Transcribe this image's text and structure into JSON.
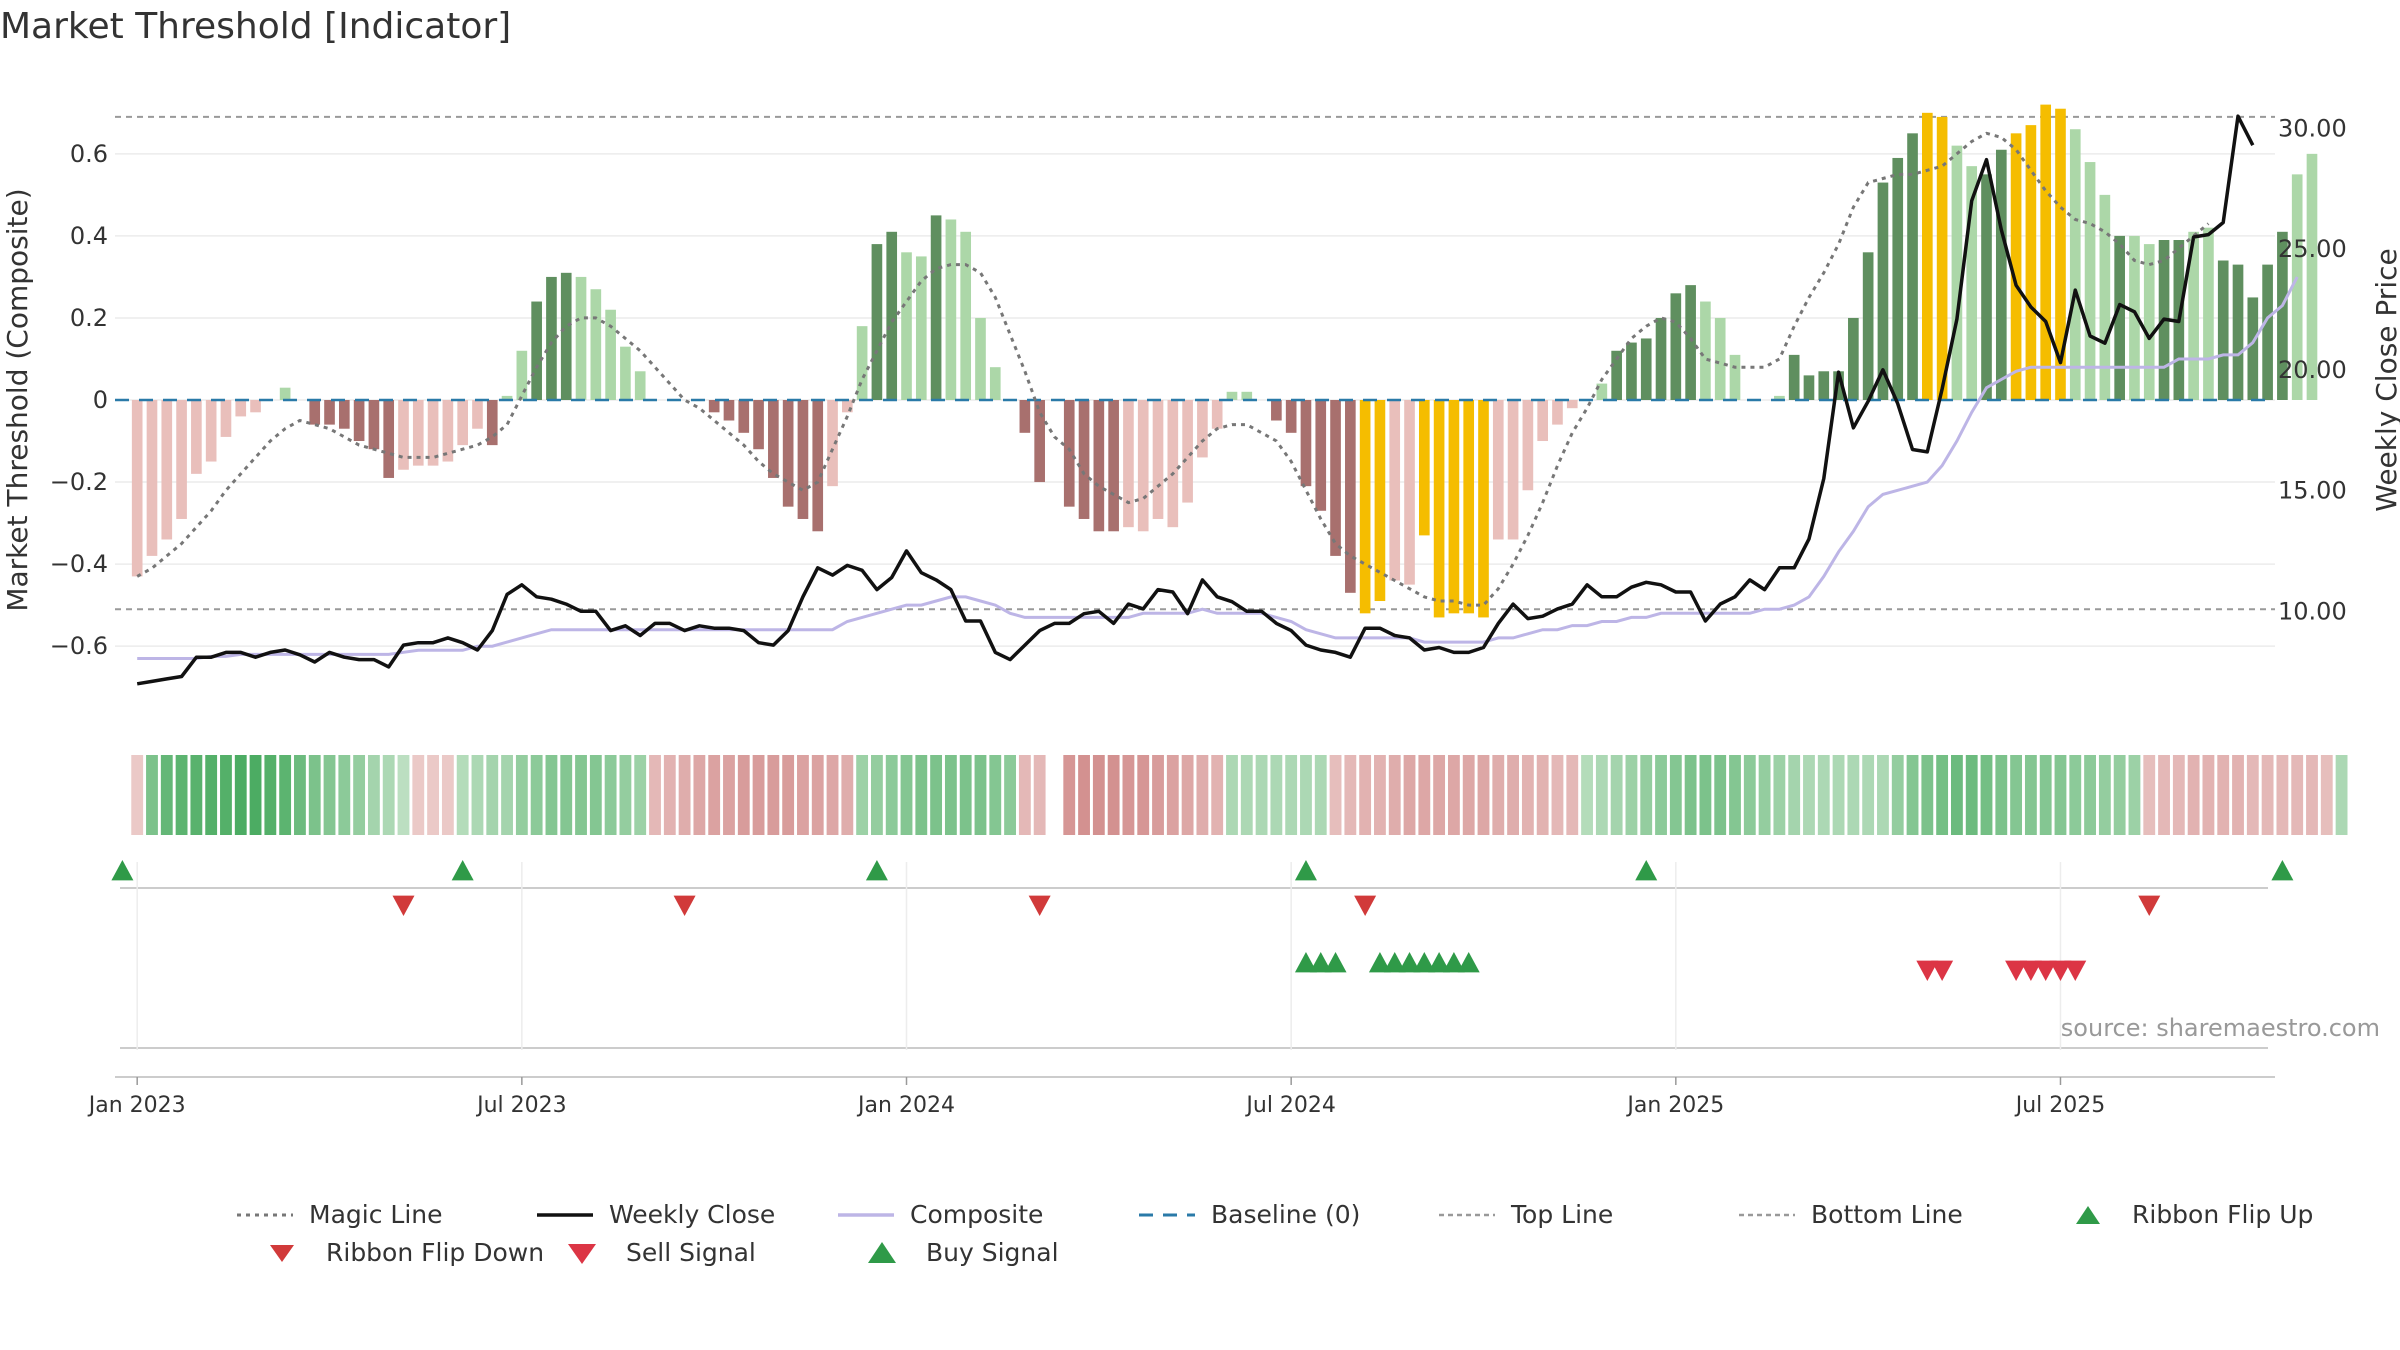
{
  "title": "Market Threshold [Indicator]",
  "source": "source: sharemaestro.com",
  "colors": {
    "pos_dark": "#5f8f5f",
    "pos_light": "#acd7a8",
    "neg_dark": "#a8706e",
    "neg_light": "#e9bfbb",
    "extreme": "#f5bd00",
    "magic": "#777777",
    "close": "#111111",
    "composite": "#bdb5e6",
    "baseline": "#2a7aa8",
    "threshold": "#999999",
    "up": "#2f9a48",
    "down": "#d13a3a"
  },
  "chart_data": {
    "type": "bar+line",
    "xlabel": "",
    "ylabel": "Market Threshold (Composite)",
    "y2label": "Weekly Close Price",
    "ylim": [
      -0.78,
      0.78
    ],
    "y2lim": [
      5.5,
      32.0
    ],
    "yticks": [
      -0.6,
      -0.4,
      -0.2,
      0,
      0.2,
      0.4,
      0.6
    ],
    "ytick_labels": [
      "−0.6",
      "−0.4",
      "−0.2",
      "0",
      "0.2",
      "0.4",
      "0.6"
    ],
    "y2ticks": [
      10,
      15,
      20,
      25,
      30
    ],
    "y2tick_labels": [
      "10.00",
      "15.00",
      "20.00",
      "25.00",
      "30.00"
    ],
    "top_line": 0.69,
    "bottom_line": -0.51,
    "xlim": [
      -1.5,
      144.5
    ],
    "x_unit": "weeks (Jan 2023 = 0)",
    "xticks": [
      0,
      26,
      52,
      78,
      104,
      130
    ],
    "xtick_labels": [
      "Jan 2023",
      "Jul 2023",
      "Jan 2024",
      "Jul 2024",
      "Jan 2025",
      "Jul 2025"
    ],
    "composite_bars": [
      -0.43,
      -0.38,
      -0.34,
      -0.29,
      -0.18,
      -0.15,
      -0.09,
      -0.04,
      -0.03,
      0,
      0.03,
      0,
      -0.06,
      -0.06,
      -0.07,
      -0.1,
      -0.12,
      -0.19,
      -0.17,
      -0.16,
      -0.16,
      -0.15,
      -0.11,
      -0.07,
      -0.11,
      0.01,
      0.12,
      0.24,
      0.3,
      0.31,
      0.3,
      0.27,
      0.22,
      0.13,
      0.07,
      0,
      0,
      0,
      0,
      -0.03,
      -0.05,
      -0.08,
      -0.12,
      -0.19,
      -0.26,
      -0.29,
      -0.32,
      -0.21,
      -0.03,
      0.18,
      0.38,
      0.41,
      0.36,
      0.35,
      0.45,
      0.44,
      0.41,
      0.2,
      0.08,
      0,
      -0.08,
      -0.2,
      0,
      -0.26,
      -0.29,
      -0.32,
      -0.32,
      -0.31,
      -0.32,
      -0.29,
      -0.31,
      -0.25,
      -0.14,
      -0.07,
      0.02,
      0.02,
      0,
      -0.05,
      -0.08,
      -0.21,
      -0.27,
      -0.38,
      -0.47,
      -0.52,
      -0.49,
      -0.44,
      -0.45,
      -0.33,
      -0.53,
      -0.52,
      -0.52,
      -0.53,
      -0.34,
      -0.34,
      -0.22,
      -0.1,
      -0.06,
      -0.02,
      0,
      0.04,
      0.12,
      0.14,
      0.15,
      0.2,
      0.26,
      0.28,
      0.24,
      0.2,
      0.11,
      0,
      0,
      0.01,
      0.11,
      0.06,
      0.07,
      0.07,
      0.2,
      0.36,
      0.53,
      0.59,
      0.65,
      0.7,
      0.69,
      0.62,
      0.57,
      0.55,
      0.61,
      0.65,
      0.67,
      0.72,
      0.71,
      0.66,
      0.58,
      0.5,
      0.4,
      0.4,
      0.38,
      0.39,
      0.39,
      0.41,
      0.42,
      0.34,
      0.33,
      0.25,
      0.33,
      0.41,
      0.55,
      0.6
    ],
    "bar_categories": [
      "neg_light",
      "neg_light",
      "neg_light",
      "neg_light",
      "neg_light",
      "neg_light",
      "neg_light",
      "neg_light",
      "neg_light",
      "pos_light",
      "pos_light",
      "pos_light",
      "neg_dark",
      "neg_dark",
      "neg_dark",
      "neg_dark",
      "neg_dark",
      "neg_dark",
      "neg_light",
      "neg_light",
      "neg_light",
      "neg_light",
      "neg_light",
      "neg_light",
      "neg_dark",
      "pos_light",
      "pos_light",
      "pos_dark",
      "pos_dark",
      "pos_dark",
      "pos_light",
      "pos_light",
      "pos_light",
      "pos_light",
      "pos_light",
      "pos_light",
      "pos_light",
      "pos_light",
      "pos_light",
      "neg_dark",
      "neg_dark",
      "neg_dark",
      "neg_dark",
      "neg_dark",
      "neg_dark",
      "neg_dark",
      "neg_dark",
      "neg_light",
      "neg_light",
      "pos_light",
      "pos_dark",
      "pos_dark",
      "pos_light",
      "pos_light",
      "pos_dark",
      "pos_light",
      "pos_light",
      "pos_light",
      "pos_light",
      "pos_light",
      "neg_dark",
      "neg_dark",
      "neg_dark",
      "neg_dark",
      "neg_dark",
      "neg_dark",
      "neg_dark",
      "neg_light",
      "neg_light",
      "neg_light",
      "neg_light",
      "neg_light",
      "neg_light",
      "neg_light",
      "pos_light",
      "pos_light",
      "pos_light",
      "neg_dark",
      "neg_dark",
      "neg_dark",
      "neg_dark",
      "neg_dark",
      "neg_dark",
      "extreme",
      "extreme",
      "neg_light",
      "neg_light",
      "extreme",
      "extreme",
      "extreme",
      "extreme",
      "extreme",
      "neg_light",
      "neg_light",
      "neg_light",
      "neg_light",
      "neg_light",
      "neg_light",
      "pos_light",
      "pos_light",
      "pos_dark",
      "pos_dark",
      "pos_dark",
      "pos_dark",
      "pos_dark",
      "pos_dark",
      "pos_light",
      "pos_light",
      "pos_light",
      "pos_light",
      "pos_dark",
      "pos_light",
      "pos_dark",
      "pos_dark",
      "pos_dark",
      "pos_dark",
      "pos_dark",
      "pos_dark",
      "pos_dark",
      "pos_dark",
      "pos_dark",
      "extreme",
      "extreme",
      "pos_light",
      "pos_light",
      "pos_dark",
      "pos_dark",
      "extreme",
      "extreme",
      "extreme",
      "extreme",
      "pos_light",
      "pos_light",
      "pos_light",
      "pos_dark",
      "pos_light",
      "pos_light",
      "pos_dark",
      "pos_dark",
      "pos_light",
      "pos_light",
      "pos_dark",
      "pos_dark",
      "pos_dark",
      "pos_dark",
      "pos_dark"
    ],
    "magic_line": [
      -0.43,
      -0.41,
      -0.38,
      -0.35,
      -0.31,
      -0.27,
      -0.22,
      -0.18,
      -0.14,
      -0.1,
      -0.07,
      -0.05,
      -0.06,
      -0.07,
      -0.09,
      -0.11,
      -0.12,
      -0.13,
      -0.14,
      -0.14,
      -0.14,
      -0.13,
      -0.12,
      -0.11,
      -0.09,
      -0.06,
      0.01,
      0.08,
      0.14,
      0.18,
      0.2,
      0.2,
      0.18,
      0.15,
      0.12,
      0.08,
      0.04,
      0,
      -0.02,
      -0.05,
      -0.08,
      -0.11,
      -0.15,
      -0.18,
      -0.2,
      -0.22,
      -0.2,
      -0.12,
      -0.04,
      0.05,
      0.12,
      0.19,
      0.24,
      0.29,
      0.32,
      0.33,
      0.33,
      0.31,
      0.25,
      0.16,
      0.07,
      -0.03,
      -0.09,
      -0.12,
      -0.18,
      -0.21,
      -0.23,
      -0.25,
      -0.24,
      -0.21,
      -0.18,
      -0.14,
      -0.1,
      -0.07,
      -0.06,
      -0.06,
      -0.08,
      -0.1,
      -0.15,
      -0.22,
      -0.29,
      -0.35,
      -0.38,
      -0.4,
      -0.42,
      -0.44,
      -0.46,
      -0.48,
      -0.49,
      -0.49,
      -0.5,
      -0.5,
      -0.46,
      -0.4,
      -0.33,
      -0.25,
      -0.16,
      -0.08,
      -0.02,
      0.05,
      0.1,
      0.15,
      0.18,
      0.2,
      0.19,
      0.15,
      0.1,
      0.09,
      0.08,
      0.08,
      0.08,
      0.1,
      0.18,
      0.25,
      0.31,
      0.38,
      0.47,
      0.53,
      0.54,
      0.55,
      0.55,
      0.56,
      0.57,
      0.6,
      0.63,
      0.65,
      0.64,
      0.61,
      0.56,
      0.51,
      0.47,
      0.44,
      0.43,
      0.41,
      0.38,
      0.34,
      0.33,
      0.34,
      0.37,
      0.4,
      0.43
    ],
    "weekly_close": [
      7.0,
      7.1,
      7.2,
      7.3,
      8.1,
      8.1,
      8.3,
      8.3,
      8.1,
      8.3,
      8.4,
      8.2,
      7.9,
      8.3,
      8.1,
      8.0,
      8.0,
      7.7,
      8.6,
      8.7,
      8.7,
      8.9,
      8.7,
      8.4,
      9.2,
      10.7,
      11.1,
      10.6,
      10.5,
      10.3,
      10.0,
      10.0,
      9.2,
      9.4,
      9.0,
      9.5,
      9.5,
      9.2,
      9.4,
      9.3,
      9.3,
      9.2,
      8.7,
      8.6,
      9.2,
      10.6,
      11.8,
      11.5,
      11.9,
      11.7,
      10.9,
      11.4,
      12.5,
      11.6,
      11.3,
      10.9,
      9.6,
      9.6,
      8.3,
      8.0,
      8.6,
      9.2,
      9.5,
      9.5,
      9.9,
      10.0,
      9.5,
      10.3,
      10.1,
      10.9,
      10.8,
      9.9,
      11.3,
      10.6,
      10.4,
      10.0,
      10.0,
      9.5,
      9.2,
      8.6,
      8.4,
      8.3,
      8.1,
      9.3,
      9.3,
      9.0,
      8.9,
      8.4,
      8.5,
      8.3,
      8.3,
      8.5,
      9.5,
      10.3,
      9.7,
      9.8,
      10.1,
      10.3,
      11.1,
      10.6,
      10.6,
      11.0,
      11.2,
      11.1,
      10.8,
      10.8,
      9.6,
      10.3,
      10.6,
      11.3,
      10.9,
      11.8,
      11.8,
      13.0,
      15.5,
      19.9,
      17.6,
      18.7,
      20.0,
      18.6,
      16.7,
      16.6,
      19.2,
      22.1,
      27.0,
      28.7,
      25.8,
      23.5,
      22.6,
      22.0,
      20.3,
      23.3,
      21.4,
      21.1,
      22.7,
      22.4,
      21.3,
      22.1,
      22.0,
      25.5,
      25.6,
      26.1,
      30.5,
      29.3
    ],
    "composite_line": [
      -0.63,
      -0.63,
      -0.63,
      -0.63,
      -0.63,
      -0.625,
      -0.625,
      -0.62,
      -0.62,
      -0.62,
      -0.62,
      -0.62,
      -0.62,
      -0.62,
      -0.62,
      -0.62,
      -0.62,
      -0.62,
      -0.615,
      -0.61,
      -0.61,
      -0.61,
      -0.61,
      -0.6,
      -0.6,
      -0.59,
      -0.58,
      -0.57,
      -0.56,
      -0.56,
      -0.56,
      -0.56,
      -0.56,
      -0.56,
      -0.56,
      -0.56,
      -0.56,
      -0.56,
      -0.56,
      -0.56,
      -0.56,
      -0.56,
      -0.56,
      -0.56,
      -0.56,
      -0.56,
      -0.56,
      -0.56,
      -0.54,
      -0.53,
      -0.52,
      -0.51,
      -0.5,
      -0.5,
      -0.49,
      -0.48,
      -0.48,
      -0.49,
      -0.5,
      -0.52,
      -0.53,
      -0.53,
      -0.53,
      -0.53,
      -0.53,
      -0.53,
      -0.53,
      -0.53,
      -0.52,
      -0.52,
      -0.52,
      -0.52,
      -0.51,
      -0.52,
      -0.52,
      -0.52,
      -0.52,
      -0.53,
      -0.54,
      -0.56,
      -0.57,
      -0.58,
      -0.58,
      -0.58,
      -0.58,
      -0.58,
      -0.58,
      -0.59,
      -0.59,
      -0.59,
      -0.59,
      -0.59,
      -0.58,
      -0.58,
      -0.57,
      -0.56,
      -0.56,
      -0.55,
      -0.55,
      -0.54,
      -0.54,
      -0.53,
      -0.53,
      -0.52,
      -0.52,
      -0.52,
      -0.52,
      -0.52,
      -0.52,
      -0.52,
      -0.51,
      -0.51,
      -0.5,
      -0.48,
      -0.43,
      -0.37,
      -0.32,
      -0.26,
      -0.23,
      -0.22,
      -0.21,
      -0.2,
      -0.16,
      -0.1,
      -0.03,
      0.03,
      0.05,
      0.07,
      0.08,
      0.08,
      0.08,
      0.08,
      0.08,
      0.08,
      0.08,
      0.08,
      0.08,
      0.08,
      0.1,
      0.1,
      0.1,
      0.11,
      0.11,
      0.14,
      0.2,
      0.23,
      0.3
    ],
    "ribbon": [
      -0.15,
      0.6,
      0.75,
      0.8,
      0.82,
      0.85,
      0.85,
      0.9,
      0.9,
      0.85,
      0.8,
      0.7,
      0.6,
      0.55,
      0.5,
      0.45,
      0.35,
      0.3,
      0.2,
      -0.15,
      -0.15,
      -0.15,
      0.25,
      0.3,
      0.35,
      0.35,
      0.45,
      0.5,
      0.55,
      0.55,
      0.55,
      0.55,
      0.5,
      0.45,
      0.4,
      -0.3,
      -0.35,
      -0.4,
      -0.45,
      -0.5,
      -0.5,
      -0.55,
      -0.55,
      -0.55,
      -0.55,
      -0.5,
      -0.5,
      -0.45,
      -0.4,
      0.4,
      0.45,
      0.5,
      0.55,
      0.6,
      0.6,
      0.6,
      0.6,
      0.6,
      0.55,
      0.5,
      -0.3,
      -0.3,
      null,
      -0.6,
      -0.65,
      -0.65,
      -0.65,
      -0.6,
      -0.6,
      -0.55,
      -0.5,
      -0.45,
      -0.4,
      -0.35,
      0.3,
      0.3,
      0.3,
      0.3,
      0.3,
      0.3,
      0.3,
      -0.25,
      -0.3,
      -0.35,
      -0.35,
      -0.4,
      -0.45,
      -0.45,
      -0.45,
      -0.45,
      -0.45,
      -0.45,
      -0.4,
      -0.4,
      -0.35,
      -0.35,
      -0.3,
      -0.3,
      0.25,
      0.3,
      0.35,
      0.4,
      0.45,
      0.5,
      0.55,
      0.6,
      0.6,
      0.6,
      0.55,
      0.5,
      0.45,
      0.4,
      0.35,
      0.3,
      0.3,
      0.3,
      0.3,
      0.3,
      0.3,
      0.45,
      0.55,
      0.6,
      0.65,
      0.7,
      0.7,
      0.65,
      0.6,
      0.55,
      0.55,
      0.55,
      0.55,
      0.5,
      0.5,
      0.45,
      0.45,
      0.4,
      -0.25,
      -0.3,
      -0.3,
      -0.35,
      -0.35,
      -0.35,
      -0.35,
      -0.3,
      -0.3,
      -0.3,
      -0.3,
      -0.3,
      -0.25,
      0.3
    ],
    "ribbon_flip_up": [
      -1,
      22,
      50,
      79,
      102,
      145
    ],
    "ribbon_flip_down": [
      18,
      37,
      61,
      83,
      136
    ],
    "buy_signals": [
      79,
      80,
      81,
      84,
      85,
      86,
      87,
      88,
      89,
      90
    ],
    "sell_signals": [
      121,
      122,
      127,
      128,
      129,
      130,
      131
    ],
    "legend": [
      {
        "label": "Magic Line",
        "key": "magic"
      },
      {
        "label": "Weekly Close",
        "key": "close"
      },
      {
        "label": "Composite",
        "key": "composite"
      },
      {
        "label": "Baseline (0)",
        "key": "baseline"
      },
      {
        "label": "Top Line",
        "key": "top"
      },
      {
        "label": "Bottom Line",
        "key": "bottom"
      },
      {
        "label": "Ribbon Flip Up",
        "key": "flipup"
      },
      {
        "label": "Ribbon Flip Down",
        "key": "flipdown"
      },
      {
        "label": "Sell Signal",
        "key": "sell"
      },
      {
        "label": "Buy Signal",
        "key": "buy"
      }
    ]
  }
}
